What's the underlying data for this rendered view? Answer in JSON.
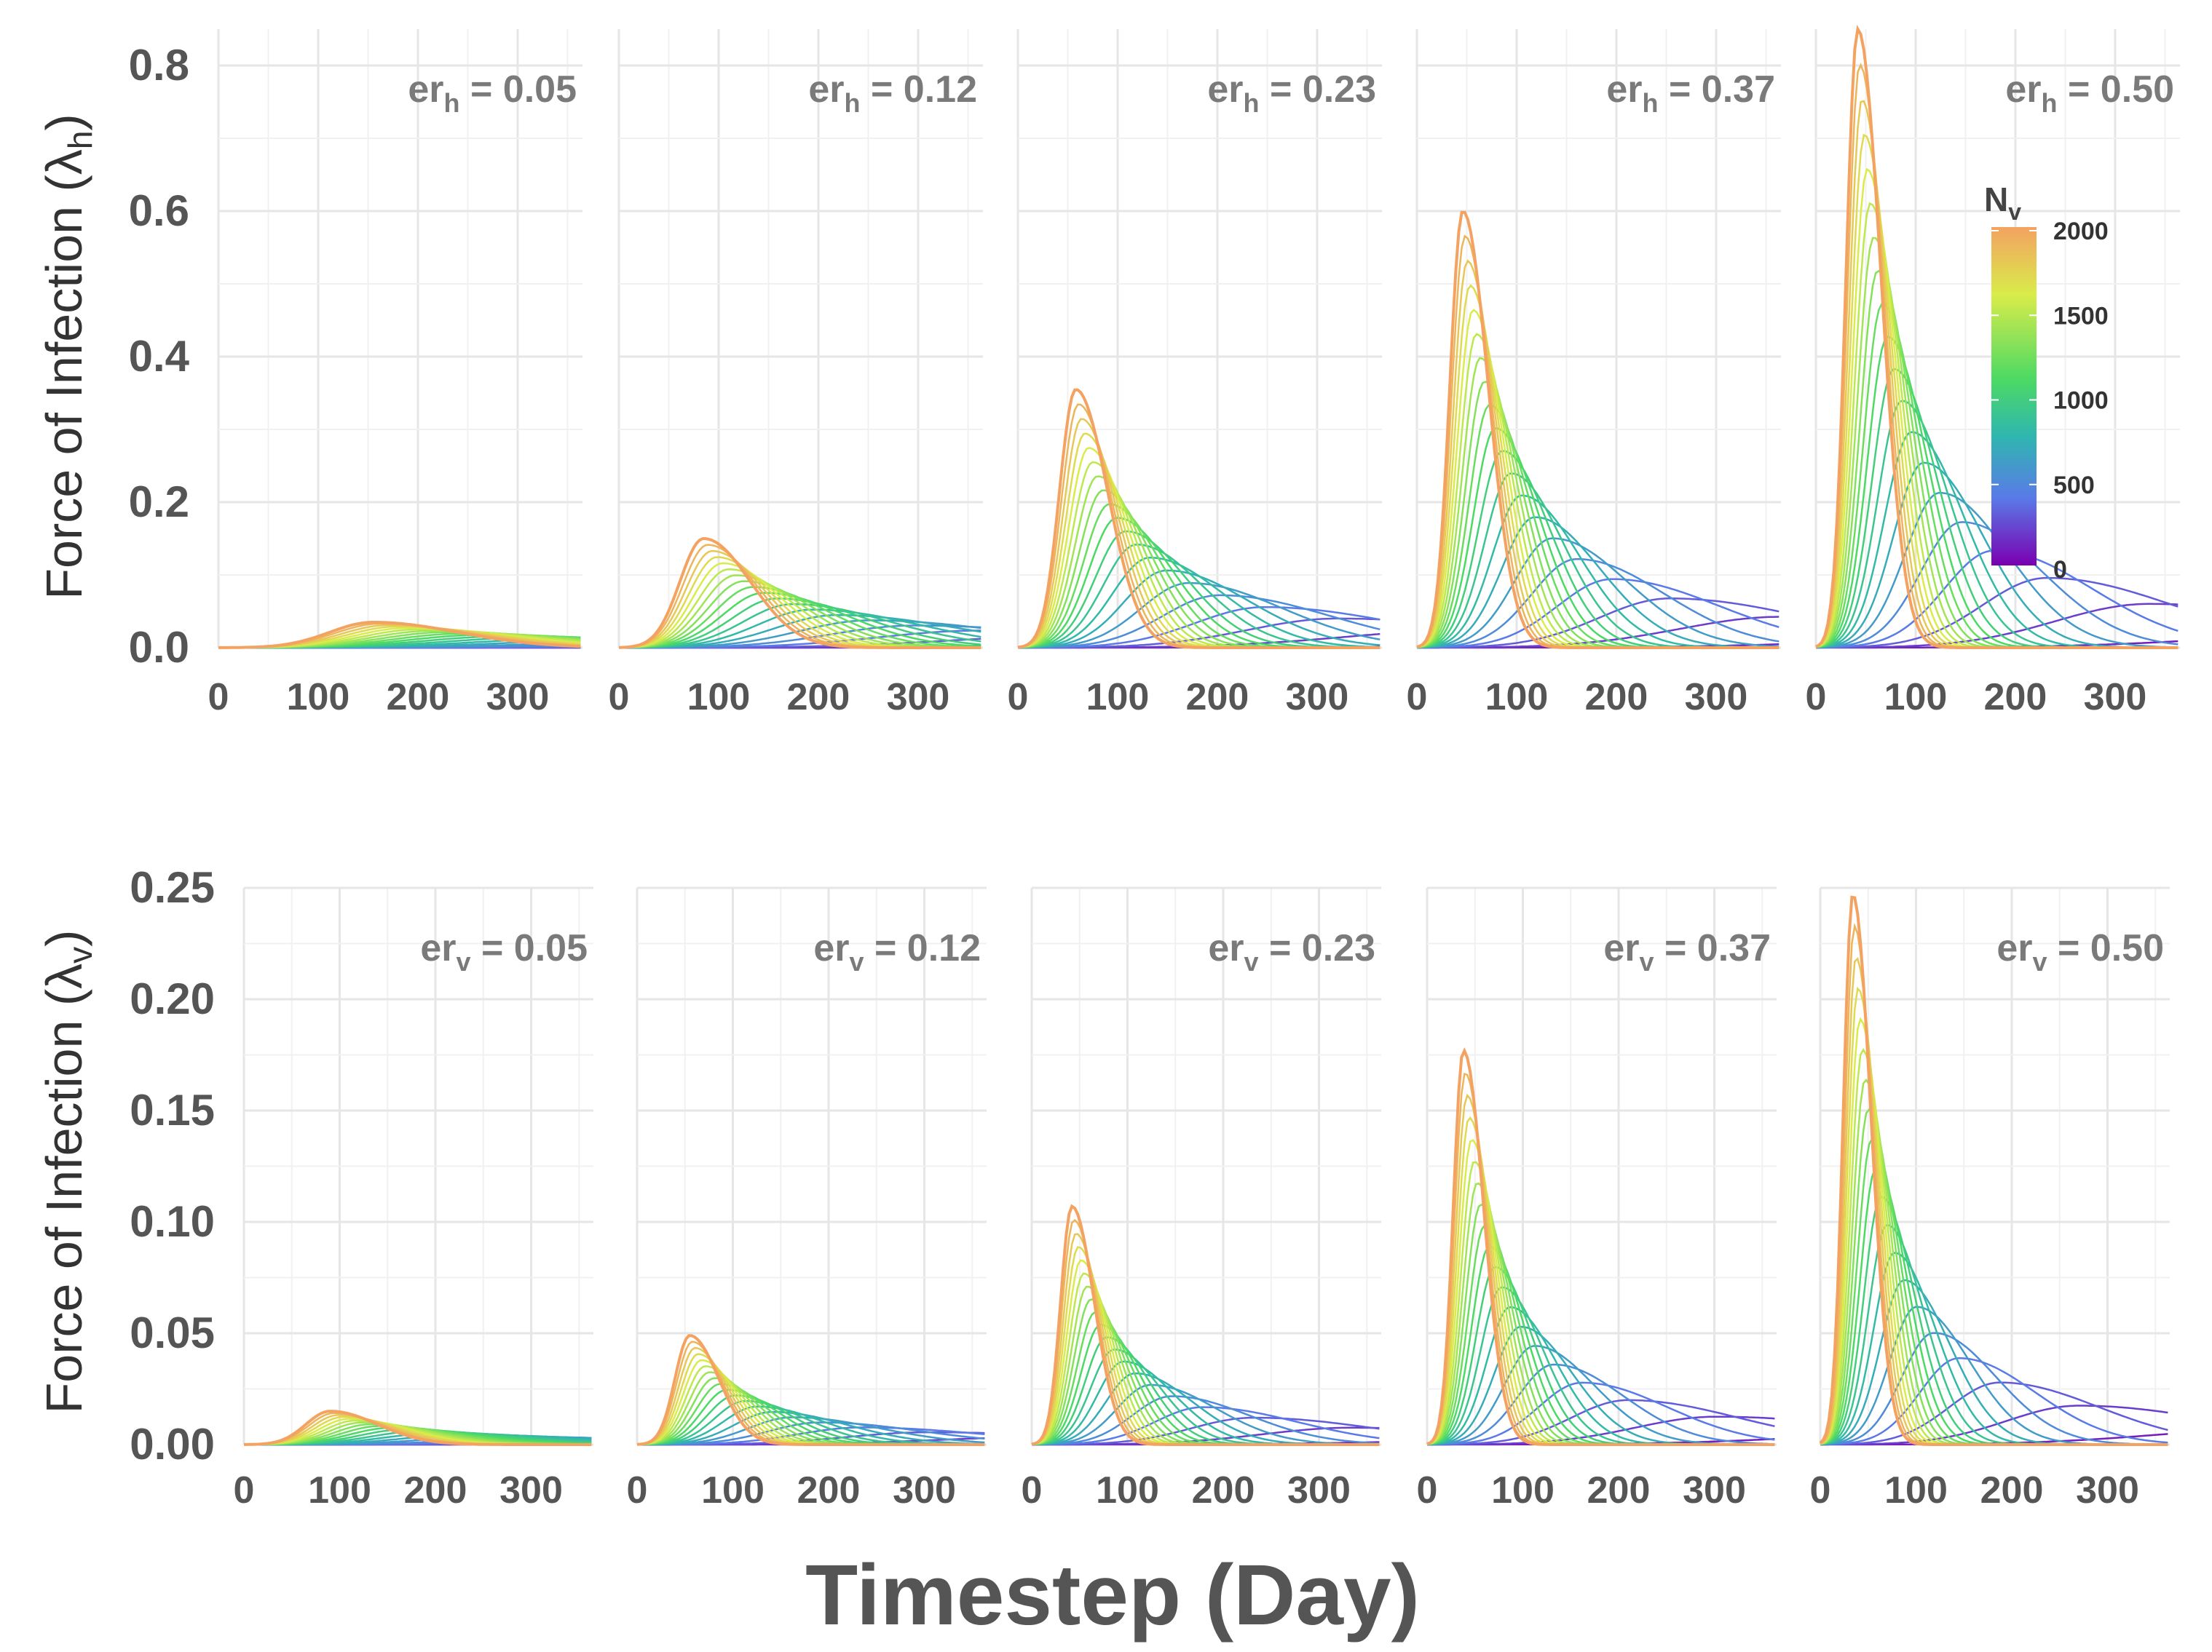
{
  "chart_data": [
    {
      "type": "line",
      "row": "top",
      "ylabel": "Force of Infection (",
      "ylabel_symbol": "λ",
      "ylabel_sub": "h",
      "ylabel_close": ")",
      "xlabel": "Timestep (Day)",
      "ylim": [
        0,
        0.85
      ],
      "yticks": [
        "0.0",
        "0.2",
        "0.4",
        "0.6",
        "0.8"
      ],
      "ytick_values": [
        0,
        0.2,
        0.4,
        0.6,
        0.8
      ],
      "xlim": [
        0,
        365
      ],
      "xticks": [
        "0",
        "100",
        "200",
        "300"
      ],
      "xtick_values": [
        0,
        100,
        200,
        300
      ],
      "color_variable": "N_v",
      "color_range": [
        0,
        2000
      ],
      "panels": [
        {
          "label_base": "er",
          "label_sub": "h",
          "label_rest": " = 0.05",
          "peak_day_at_max_Nv": 155,
          "peak_value_at_max_Nv": 0.035
        },
        {
          "label_base": "er",
          "label_sub": "h",
          "label_rest": " = 0.12",
          "peak_day_at_max_Nv": 85,
          "peak_value_at_max_Nv": 0.15
        },
        {
          "label_base": "er",
          "label_sub": "h",
          "label_rest": " = 0.23",
          "peak_day_at_max_Nv": 58,
          "peak_value_at_max_Nv": 0.355
        },
        {
          "label_base": "er",
          "label_sub": "h",
          "label_rest": " = 0.37",
          "peak_day_at_max_Nv": 46,
          "peak_value_at_max_Nv": 0.6
        },
        {
          "label_base": "er",
          "label_sub": "h",
          "label_rest": " = 0.50",
          "peak_day_at_max_Nv": 42,
          "peak_value_at_max_Nv": 0.85
        }
      ]
    },
    {
      "type": "line",
      "row": "bottom",
      "ylabel": "Force of Infection (",
      "ylabel_symbol": "λ",
      "ylabel_sub": "v",
      "ylabel_close": ")",
      "xlabel": "Timestep (Day)",
      "ylim": [
        0,
        0.25
      ],
      "yticks": [
        "0.00",
        "0.05",
        "0.10",
        "0.15",
        "0.20",
        "0.25"
      ],
      "ytick_values": [
        0,
        0.05,
        0.1,
        0.15,
        0.2,
        0.25
      ],
      "xlim": [
        0,
        365
      ],
      "xticks": [
        "0",
        "100",
        "200",
        "300"
      ],
      "xtick_values": [
        0,
        100,
        200,
        300
      ],
      "color_variable": "N_v",
      "color_range": [
        0,
        2000
      ],
      "panels": [
        {
          "label_base": "er",
          "label_sub": "v",
          "label_rest": " = 0.05",
          "peak_day_at_max_Nv": 90,
          "peak_value_at_max_Nv": 0.015
        },
        {
          "label_base": "er",
          "label_sub": "v",
          "label_rest": " = 0.12",
          "peak_day_at_max_Nv": 55,
          "peak_value_at_max_Nv": 0.049
        },
        {
          "label_base": "er",
          "label_sub": "v",
          "label_rest": " = 0.23",
          "peak_day_at_max_Nv": 42,
          "peak_value_at_max_Nv": 0.107
        },
        {
          "label_base": "er",
          "label_sub": "v",
          "label_rest": " = 0.37",
          "peak_day_at_max_Nv": 38,
          "peak_value_at_max_Nv": 0.177
        },
        {
          "label_base": "er",
          "label_sub": "v",
          "label_rest": " = 0.50",
          "peak_day_at_max_Nv": 34,
          "peak_value_at_max_Nv": 0.247
        }
      ]
    }
  ],
  "legend": {
    "title_base": "N",
    "title_sub": "v",
    "tick_labels": [
      "2000",
      "1500",
      "1000",
      "500",
      "0"
    ],
    "tick_values": [
      2000,
      1500,
      1000,
      500,
      0
    ],
    "colors_high_to_low": [
      "#f4a261",
      "#d9ec4a",
      "#4cd964",
      "#2fb6b0",
      "#5a7ae8",
      "#7b2fe0"
    ]
  }
}
